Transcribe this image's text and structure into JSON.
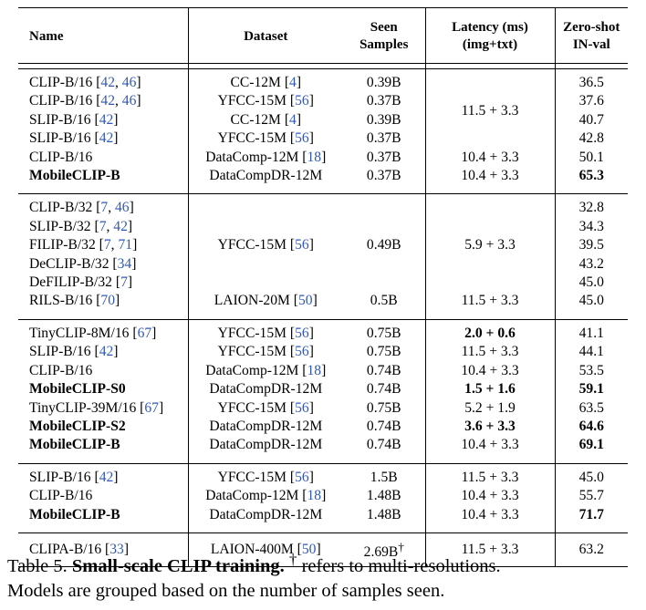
{
  "table": {
    "headers": {
      "name": "Name",
      "dataset": "Dataset",
      "seen_line1": "Seen",
      "seen_line2": "Samples",
      "latency_line1": "Latency (ms)",
      "latency_line2": "(img+txt)",
      "zeroshot_line1": "Zero-shot",
      "zeroshot_line2": "IN-val"
    },
    "groups": [
      {
        "rows": [
          {
            "name": "CLIP-B/16",
            "name_cites": [
              "42",
              "46"
            ],
            "dataset": "CC-12M",
            "dataset_cite": "4",
            "seen": "0.39B",
            "zero_shot": "36.5"
          },
          {
            "name": "CLIP-B/16",
            "name_cites": [
              "42",
              "46"
            ],
            "dataset": "YFCC-15M",
            "dataset_cite": "56",
            "seen": "0.37B",
            "zero_shot": "37.6"
          },
          {
            "name": "SLIP-B/16",
            "name_cites": [
              "42"
            ],
            "dataset": "CC-12M",
            "dataset_cite": "4",
            "seen": "0.39B",
            "zero_shot": "40.7"
          },
          {
            "name": "SLIP-B/16",
            "name_cites": [
              "42"
            ],
            "dataset": "YFCC-15M",
            "dataset_cite": "56",
            "seen": "0.37B",
            "zero_shot": "42.8"
          },
          {
            "name": "CLIP-B/16",
            "name_cites": [],
            "dataset": "DataComp-12M",
            "dataset_cite": "18",
            "seen": "0.37B",
            "latency": "10.4 + 3.3",
            "zero_shot": "50.1"
          },
          {
            "name": "MobileCLIP-B",
            "bold_name": true,
            "dataset": "DataCompDR-12M",
            "seen": "0.37B",
            "latency": "10.4 + 3.3",
            "zero_shot": "65.3",
            "bold_zero_shot": true
          }
        ],
        "merged_latency": "11.5 + 3.3"
      },
      {
        "rows": [
          {
            "name": "CLIP-B/32",
            "name_cites": [
              "7",
              "46"
            ],
            "zero_shot": "32.8"
          },
          {
            "name": "SLIP-B/32",
            "name_cites": [
              "7",
              "42"
            ],
            "zero_shot": "34.3"
          },
          {
            "name": "FILIP-B/32",
            "name_cites": [
              "7",
              "71"
            ],
            "zero_shot": "39.5"
          },
          {
            "name": "DeCLIP-B/32",
            "name_cites": [
              "34"
            ],
            "zero_shot": "43.2"
          },
          {
            "name": "DeFILIP-B/32",
            "name_cites": [
              "7"
            ],
            "zero_shot": "45.0"
          },
          {
            "name": "RILS-B/16",
            "name_cites": [
              "70"
            ],
            "dataset": "LAION-20M",
            "dataset_cite": "50",
            "seen": "0.5B",
            "latency": "11.5 + 3.3",
            "zero_shot": "45.0"
          }
        ],
        "merged_dataset": "YFCC-15M",
        "merged_dataset_cite": "56",
        "merged_seen": "0.49B",
        "merged_latency": "5.9 + 3.3"
      },
      {
        "rows": [
          {
            "name": "TinyCLIP-8M/16",
            "name_cites": [
              "67"
            ],
            "dataset": "YFCC-15M",
            "dataset_cite": "56",
            "seen": "0.75B",
            "latency": "2.0 + 0.6",
            "bold_latency": true,
            "zero_shot": "41.1"
          },
          {
            "name": "SLIP-B/16",
            "name_cites": [
              "42"
            ],
            "dataset": "YFCC-15M",
            "dataset_cite": "56",
            "seen": "0.75B",
            "latency": "11.5 + 3.3",
            "zero_shot": "44.1"
          },
          {
            "name": "CLIP-B/16",
            "name_cites": [],
            "dataset": "DataComp-12M",
            "dataset_cite": "18",
            "seen": "0.74B",
            "latency": "10.4 + 3.3",
            "zero_shot": "53.5"
          },
          {
            "name": "MobileCLIP-S0",
            "bold_name": true,
            "dataset": "DataCompDR-12M",
            "seen": "0.74B",
            "latency": "1.5 + 1.6",
            "bold_latency": true,
            "zero_shot": "59.1",
            "bold_zero_shot": true
          },
          {
            "name": "TinyCLIP-39M/16",
            "name_cites": [
              "67"
            ],
            "dataset": "YFCC-15M",
            "dataset_cite": "56",
            "seen": "0.75B",
            "latency": "5.2 + 1.9",
            "zero_shot": "63.5"
          },
          {
            "name": "MobileCLIP-S2",
            "bold_name": true,
            "dataset": "DataCompDR-12M",
            "seen": "0.74B",
            "latency": "3.6 + 3.3",
            "bold_latency": true,
            "zero_shot": "64.6",
            "bold_zero_shot": true
          },
          {
            "name": "MobileCLIP-B",
            "bold_name": true,
            "dataset": "DataCompDR-12M",
            "seen": "0.74B",
            "latency": "10.4 + 3.3",
            "zero_shot": "69.1",
            "bold_zero_shot": true
          }
        ]
      },
      {
        "rows": [
          {
            "name": "SLIP-B/16",
            "name_cites": [
              "42"
            ],
            "dataset": "YFCC-15M",
            "dataset_cite": "56",
            "seen": "1.5B",
            "latency": "11.5 + 3.3",
            "zero_shot": "45.0"
          },
          {
            "name": "CLIP-B/16",
            "name_cites": [],
            "dataset": "DataComp-12M",
            "dataset_cite": "18",
            "seen": "1.48B",
            "latency": "10.4 + 3.3",
            "zero_shot": "55.7"
          },
          {
            "name": "MobileCLIP-B",
            "bold_name": true,
            "dataset": "DataCompDR-12M",
            "seen": "1.48B",
            "latency": "10.4 + 3.3",
            "zero_shot": "71.7",
            "bold_zero_shot": true
          }
        ]
      },
      {
        "rows": [
          {
            "name": "CLIPA-B/16",
            "name_cites": [
              "33"
            ],
            "dataset": "LAION-400M",
            "dataset_cite": "50",
            "seen": "2.69B",
            "seen_mark": "†",
            "latency": "11.5 + 3.3",
            "zero_shot": "63.2"
          }
        ]
      }
    ]
  },
  "caption": {
    "label": "Table 5.",
    "title": "Small-scale CLIP training.",
    "dagger": "†",
    "text_line1": "refers to multi-resolutions.",
    "text_line2": "Models are grouped based on the number of samples seen."
  },
  "colors": {
    "citation": "#2f58b8",
    "text": "#000000"
  }
}
